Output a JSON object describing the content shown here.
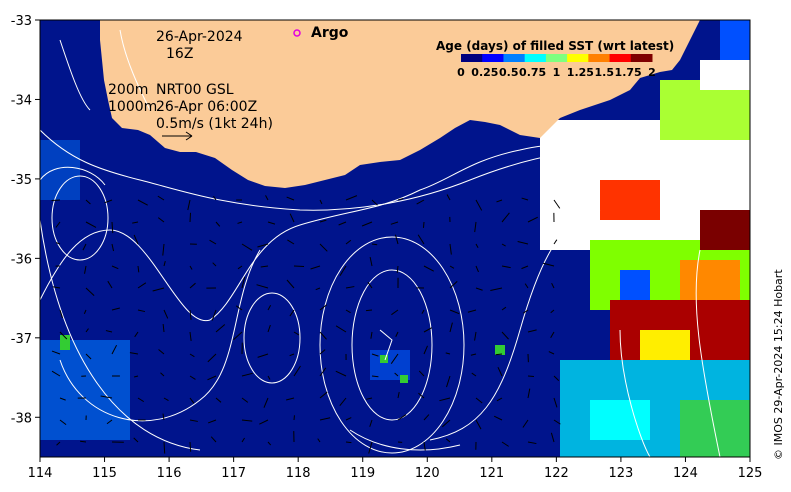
{
  "header": {
    "date": "26-Apr-2024",
    "hour": "16Z",
    "depth_line1": "200m",
    "depth_line2": "1000m",
    "current_line1": "NRT00 GSL",
    "current_line2": "26-Apr 06:00Z",
    "vector_scale": "0.5m/s (1kt 24h)"
  },
  "legend": {
    "argo_label": "Argo",
    "argo_color": "#e000e0",
    "colorbar_title": "Age (days) of filled SST (wrt latest)",
    "colorbar_ticks": [
      "0",
      "0.25",
      "0.5",
      "0.75",
      "1",
      "1.25",
      "1.5",
      "1.75",
      "2"
    ],
    "colorbar_colors": [
      "#00007f",
      "#0000ff",
      "#0080ff",
      "#00ffff",
      "#7fff7f",
      "#ffff00",
      "#ff8000",
      "#ff0000",
      "#7f0000"
    ]
  },
  "credit": "© IMOS 29-Apr-2024 15:24 Hobart",
  "axes": {
    "x_ticks": [
      "114",
      "115",
      "116",
      "117",
      "118",
      "119",
      "120",
      "121",
      "122",
      "123",
      "124",
      "125"
    ],
    "y_ticks": [
      "-33",
      "-34",
      "-35",
      "-36",
      "-37",
      "-38"
    ],
    "lon_range": [
      114,
      125
    ],
    "lat_range": [
      -38.5,
      -33
    ]
  },
  "colors": {
    "ocean": "#00148c",
    "land": "#fbcb98",
    "contour": "#ffffff"
  }
}
